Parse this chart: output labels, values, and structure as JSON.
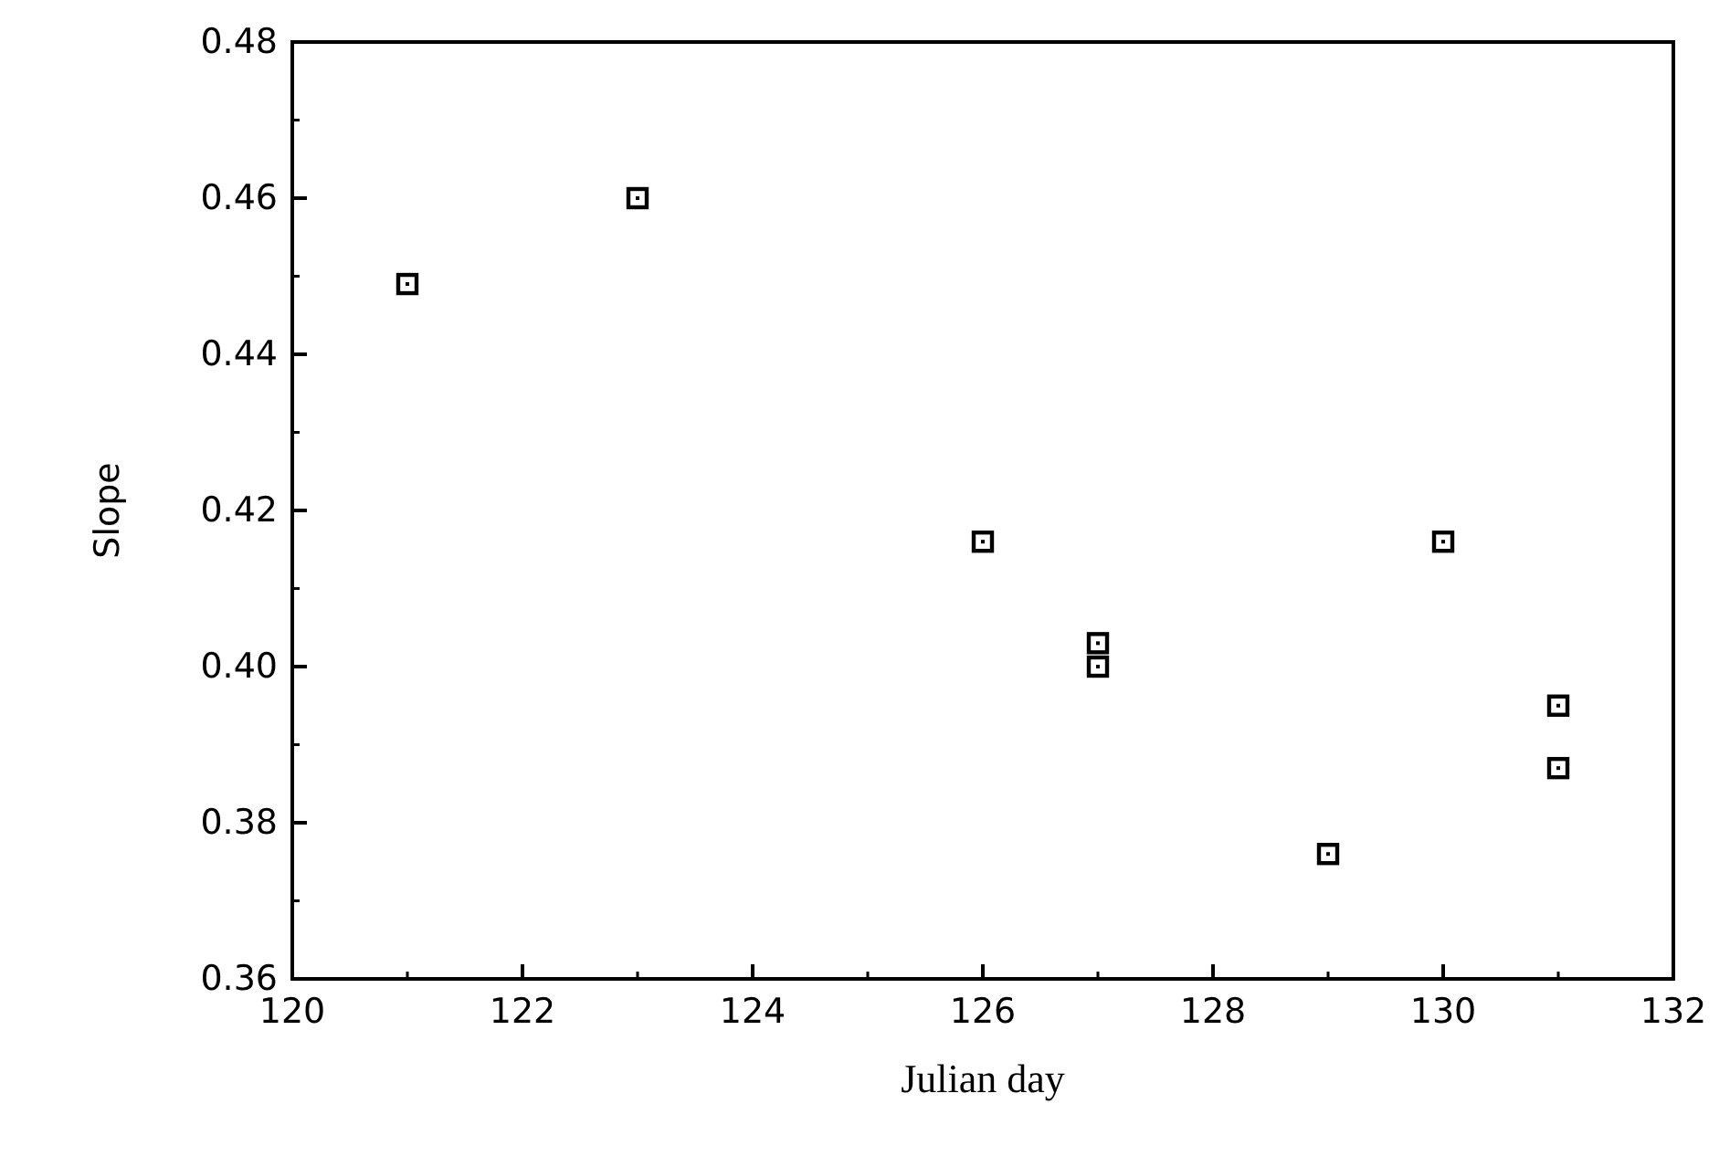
{
  "chart_data": {
    "type": "scatter",
    "xlabel": "Julian day",
    "ylabel": "Slope",
    "x": [
      121,
      123,
      126,
      127,
      127,
      129,
      130,
      131,
      131
    ],
    "values": [
      0.449,
      0.46,
      0.416,
      0.403,
      0.4,
      0.376,
      0.416,
      0.395,
      0.387
    ],
    "color": "#000000",
    "marker": "square",
    "xlim": [
      120,
      132
    ],
    "xticks": [
      120,
      122,
      124,
      126,
      128,
      130,
      132
    ],
    "ylim": [
      0.36,
      0.48
    ],
    "yticks": [
      {
        "value": 0.36,
        "label": "0.36"
      },
      {
        "value": 0.38,
        "label": "0.38"
      },
      {
        "value": 0.4,
        "label": "0.40"
      },
      {
        "value": 0.42,
        "label": "0.42"
      },
      {
        "value": 0.44,
        "label": "0.44"
      },
      {
        "value": 0.46,
        "label": "0.46"
      },
      {
        "value": 0.48,
        "label": "0.48"
      }
    ],
    "grid": false
  }
}
